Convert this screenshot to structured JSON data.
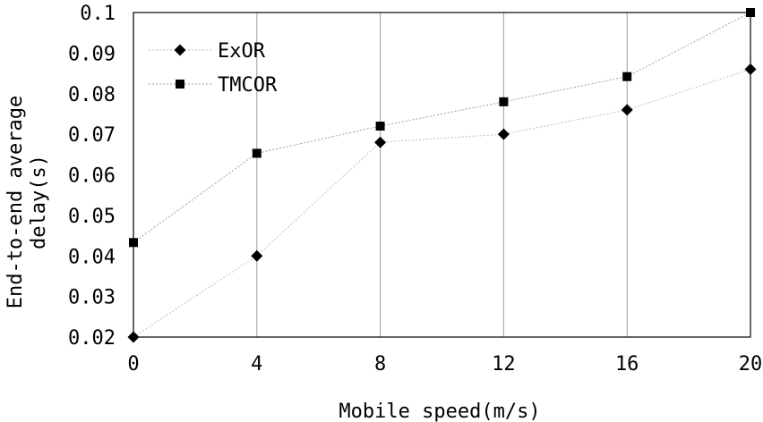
{
  "chart_data": {
    "type": "line",
    "title": "",
    "xlabel": "Mobile speed(m/s)",
    "ylabel_lines": [
      "End-to-end average",
      "delay(s)"
    ],
    "x": [
      0,
      4,
      8,
      12,
      16,
      20
    ],
    "xlim": [
      0,
      20
    ],
    "ylim": [
      0.02,
      0.1
    ],
    "x_tick_labels": [
      "0",
      "4",
      "8",
      "12",
      "16",
      "20"
    ],
    "y_ticks": [
      0.02,
      0.03,
      0.04,
      0.05,
      0.06,
      0.07,
      0.08,
      0.09,
      0.1
    ],
    "y_tick_labels": [
      "0.02",
      "0.03",
      "0.04",
      "0.05",
      "0.06",
      "0.07",
      "0.08",
      "0.09",
      "0.1"
    ],
    "grid": "vertical",
    "legend_position": "top-left",
    "series": [
      {
        "name": "ExOR",
        "marker": "diamond",
        "line_color": "#bdbdbd",
        "values": [
          0.02,
          0.04,
          0.068,
          0.07,
          0.076,
          0.086
        ]
      },
      {
        "name": "TMCOR",
        "marker": "square",
        "line_color": "#9e9e9e",
        "values": [
          0.0433,
          0.0653,
          0.072,
          0.078,
          0.0842,
          0.1
        ]
      }
    ]
  }
}
